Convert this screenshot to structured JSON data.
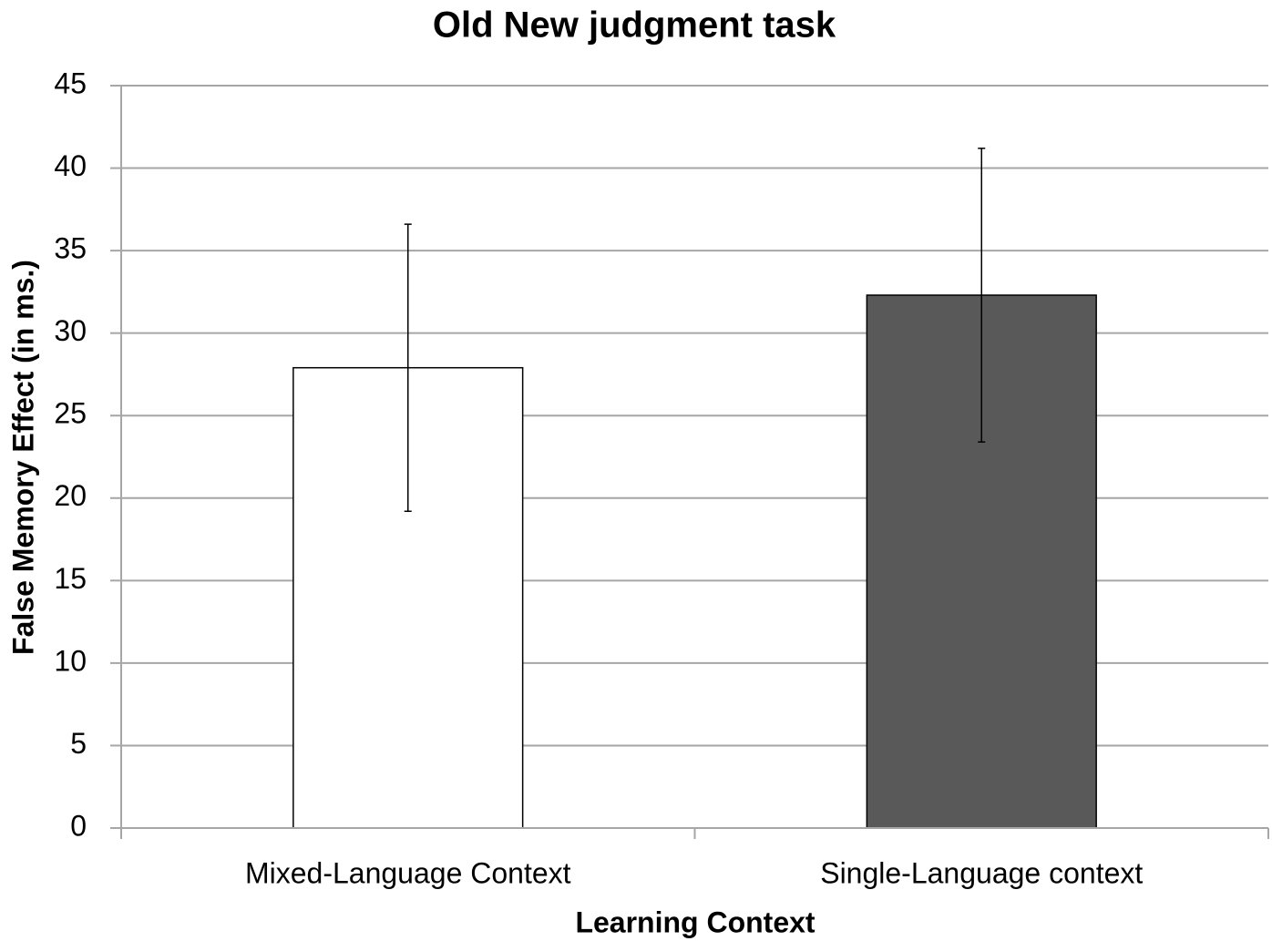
{
  "chart_data": {
    "type": "bar",
    "title": "Old New judgment task",
    "x_label": "Learning Context",
    "y_label": "False Memory Effect (in ms.)",
    "categories": [
      "Mixed-Language Context",
      "Single-Language context"
    ],
    "values": [
      27.9,
      32.3
    ],
    "errors": [
      8.7,
      8.9
    ],
    "colors": [
      "#ffffff",
      "#595959"
    ],
    "ylim": [
      0,
      45
    ],
    "yticks": [
      0,
      5,
      10,
      15,
      20,
      25,
      30,
      35,
      40,
      45
    ],
    "grid": true
  }
}
